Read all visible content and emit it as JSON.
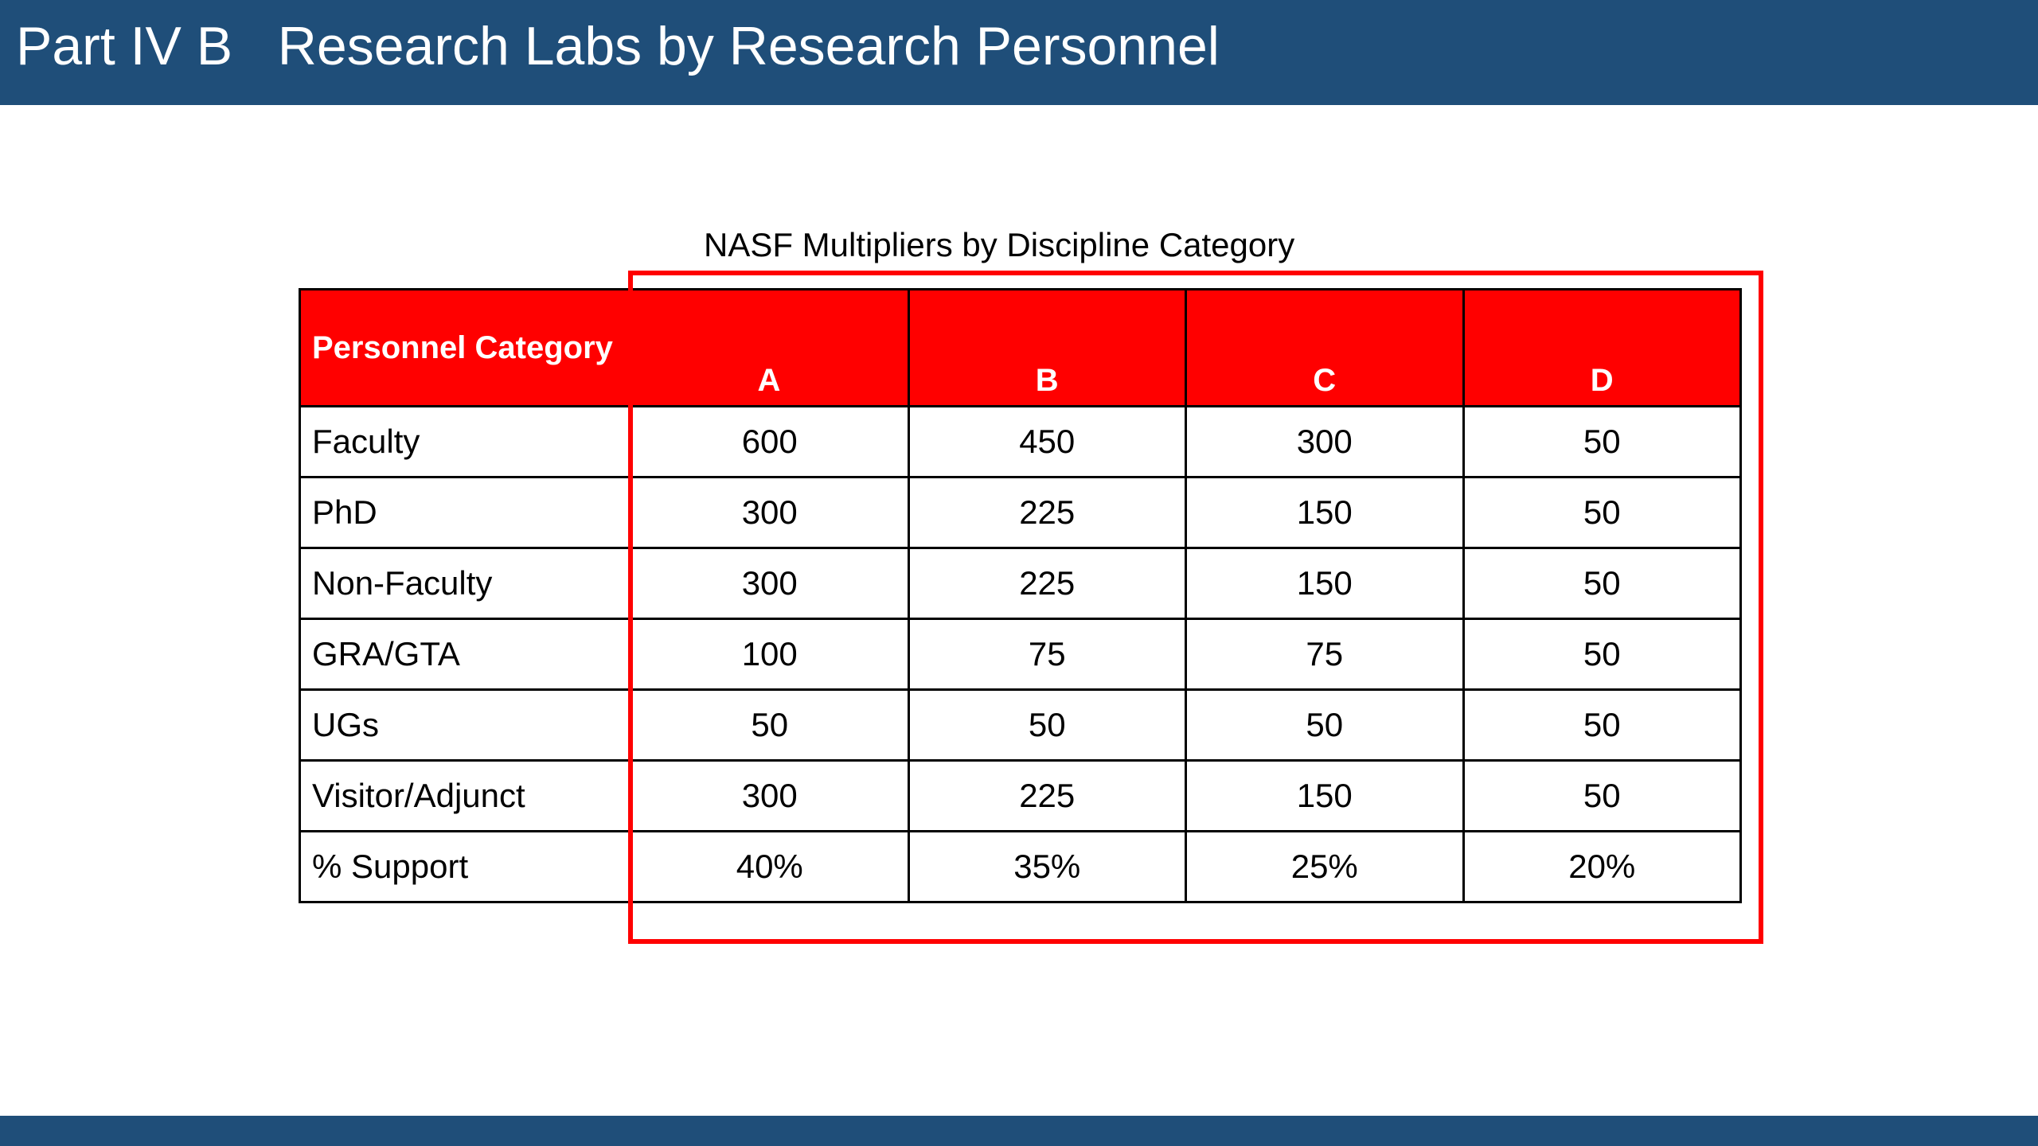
{
  "slide": {
    "title": "Part IV B   Research Labs by Research Personnel",
    "caption": "NASF Multipliers by Discipline Category"
  },
  "table": {
    "headers": [
      "Personnel Category",
      "A",
      "B",
      "C",
      "D"
    ],
    "rows": [
      {
        "label": "Faculty",
        "values": [
          "600",
          "450",
          "300",
          "50"
        ]
      },
      {
        "label": "PhD",
        "values": [
          "300",
          "225",
          "150",
          "50"
        ]
      },
      {
        "label": "Non-Faculty",
        "values": [
          "300",
          "225",
          "150",
          "50"
        ]
      },
      {
        "label": "GRA/GTA",
        "values": [
          "100",
          "75",
          "75",
          "50"
        ]
      },
      {
        "label": "UGs",
        "values": [
          "50",
          "50",
          "50",
          "50"
        ]
      },
      {
        "label": "Visitor/Adjunct",
        "values": [
          "300",
          "225",
          "150",
          "50"
        ]
      },
      {
        "label": "% Support",
        "values": [
          "40%",
          "35%",
          "25%",
          "20%"
        ]
      }
    ]
  },
  "colors": {
    "title_bar": "#1f4e79",
    "header_fill": "#ff0000",
    "highlight_border": "#ff0000"
  }
}
